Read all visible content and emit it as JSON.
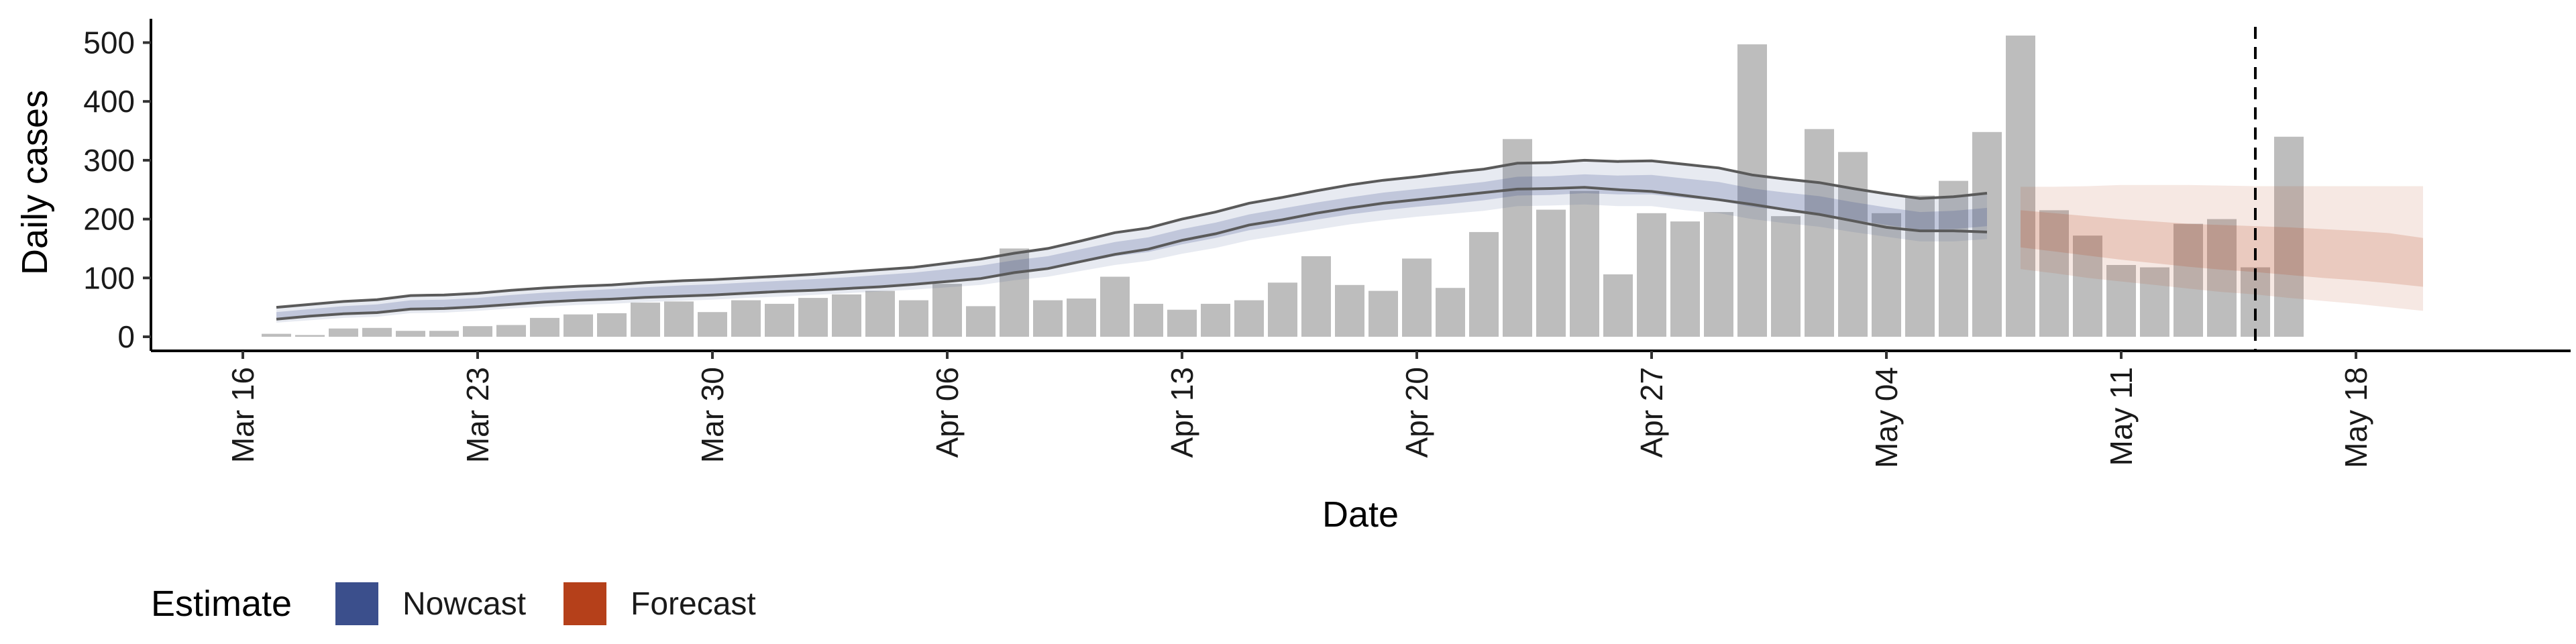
{
  "chart_data": {
    "type": "bar",
    "xlabel": "Date",
    "ylabel": "Daily cases",
    "ylim": [
      -25,
      540
    ],
    "grid": false,
    "legend_position": "bottom-left",
    "x_start_date": "2020-03-16",
    "x_tick_labels": [
      "Mar 16",
      "Mar 23",
      "Mar 30",
      "Apr 06",
      "Apr 13",
      "Apr 20",
      "Apr 27",
      "May 04",
      "May 11",
      "May 18"
    ],
    "y_ticks": [
      0,
      100,
      200,
      300,
      400,
      500
    ],
    "y_tick_labels": [
      "0",
      "100",
      "200",
      "300",
      "400",
      "500"
    ],
    "bar_start_date": "2020-03-17",
    "bar_color": "#bdbdbd",
    "bars": [
      5,
      3,
      14,
      15,
      10,
      10,
      18,
      20,
      32,
      38,
      40,
      58,
      60,
      42,
      62,
      56,
      66,
      72,
      78,
      62,
      90,
      52,
      150,
      62,
      65,
      102,
      56,
      46,
      56,
      62,
      92,
      137,
      88,
      78,
      133,
      83,
      178,
      336,
      216,
      248,
      106,
      210,
      196,
      212,
      497,
      205,
      353,
      314,
      210,
      240,
      265,
      348,
      512,
      215,
      172,
      122,
      118,
      192,
      200,
      118,
      340
    ],
    "nowcast": {
      "start_date": "2020-03-17",
      "color": "#3b4f8c",
      "upper": [
        50,
        55,
        60,
        63,
        70,
        71,
        74,
        79,
        83,
        86,
        88,
        92,
        95,
        97,
        100,
        103,
        106,
        110,
        114,
        118,
        125,
        132,
        142,
        150,
        163,
        177,
        185,
        200,
        212,
        227,
        237,
        248,
        258,
        266,
        272,
        279,
        285,
        295,
        296,
        300,
        298,
        299,
        293,
        287,
        275,
        268,
        262,
        252,
        243,
        235,
        238,
        244
      ],
      "mid_upper": [
        42,
        47,
        52,
        55,
        62,
        63,
        66,
        71,
        75,
        78,
        81,
        84,
        87,
        89,
        92,
        95,
        98,
        101,
        105,
        109,
        115,
        121,
        130,
        137,
        149,
        161,
        169,
        183,
        194,
        208,
        218,
        228,
        237,
        245,
        251,
        257,
        263,
        272,
        273,
        276,
        274,
        275,
        269,
        263,
        252,
        245,
        239,
        229,
        220,
        212,
        214,
        219
      ],
      "mid_lower": [
        32,
        36,
        40,
        43,
        49,
        50,
        53,
        57,
        61,
        64,
        66,
        69,
        71,
        73,
        76,
        79,
        81,
        84,
        87,
        91,
        96,
        101,
        109,
        115,
        126,
        137,
        144,
        157,
        168,
        181,
        190,
        199,
        208,
        215,
        221,
        226,
        232,
        240,
        241,
        244,
        242,
        242,
        236,
        231,
        221,
        214,
        208,
        199,
        190,
        182,
        183,
        188
      ],
      "lower": [
        24,
        28,
        32,
        34,
        40,
        41,
        44,
        48,
        51,
        54,
        56,
        59,
        61,
        63,
        66,
        68,
        71,
        74,
        77,
        80,
        84,
        88,
        96,
        102,
        112,
        122,
        129,
        141,
        151,
        164,
        173,
        182,
        191,
        198,
        204,
        209,
        214,
        222,
        223,
        225,
        222,
        222,
        215,
        210,
        200,
        193,
        187,
        178,
        170,
        162,
        162,
        166
      ],
      "upper_line": [
        50,
        55,
        60,
        63,
        70,
        71,
        74,
        79,
        83,
        86,
        88,
        92,
        95,
        97,
        100,
        103,
        106,
        110,
        114,
        118,
        125,
        132,
        142,
        150,
        163,
        177,
        185,
        200,
        212,
        227,
        237,
        248,
        258,
        266,
        272,
        279,
        285,
        295,
        296,
        300,
        298,
        299,
        293,
        287,
        275,
        268,
        262,
        252,
        243,
        235,
        238,
        244
      ],
      "lower_line": [
        30,
        35,
        39,
        41,
        47,
        48,
        51,
        55,
        59,
        62,
        64,
        67,
        69,
        71,
        74,
        77,
        79,
        82,
        85,
        89,
        94,
        99,
        109,
        116,
        128,
        140,
        149,
        164,
        175,
        190,
        199,
        210,
        219,
        227,
        233,
        239,
        245,
        251,
        252,
        254,
        250,
        247,
        240,
        233,
        225,
        216,
        208,
        197,
        186,
        180,
        180,
        178
      ]
    },
    "forecast": {
      "start_date": "2020-05-08",
      "color": "#b5401a",
      "upper": [
        255,
        255,
        256,
        258,
        258,
        258,
        257,
        256,
        256,
        256,
        256,
        256,
        256
      ],
      "mid_upper": [
        215,
        210,
        205,
        200,
        196,
        192,
        190,
        188,
        186,
        183,
        180,
        176,
        168
      ],
      "mid_lower": [
        152,
        145,
        138,
        131,
        125,
        119,
        114,
        110,
        105,
        100,
        96,
        91,
        85
      ],
      "lower": [
        115,
        108,
        100,
        94,
        88,
        82,
        76,
        72,
        66,
        61,
        56,
        50,
        44
      ]
    },
    "vline_date": "2020-05-15",
    "legend_title": "Estimate",
    "legend": [
      {
        "label": "Nowcast",
        "color": "#3b4f8c"
      },
      {
        "label": "Forecast",
        "color": "#b5401a"
      }
    ]
  }
}
